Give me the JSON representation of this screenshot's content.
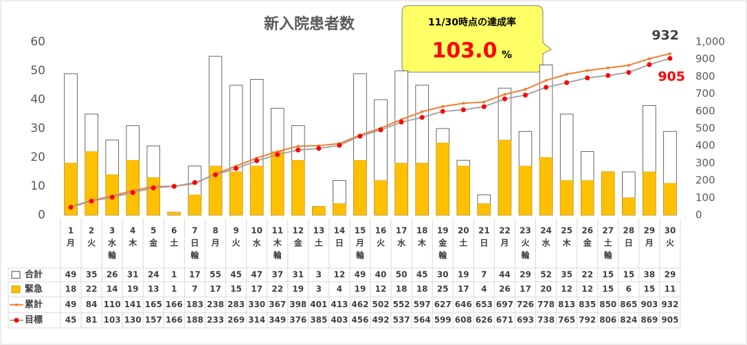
{
  "chart_data": {
    "type": "bar_line",
    "title": "新入院患者数",
    "days": [
      "1",
      "2",
      "3",
      "4",
      "5",
      "6",
      "7",
      "8",
      "9",
      "10",
      "11",
      "12",
      "13",
      "14",
      "15",
      "16",
      "17",
      "18",
      "19",
      "20",
      "21",
      "22",
      "23",
      "24",
      "25",
      "26",
      "27",
      "28",
      "29",
      "30"
    ],
    "weekdays": [
      "月",
      "火",
      "水",
      "木",
      "金",
      "土",
      "日",
      "月",
      "火",
      "水",
      "木",
      "金",
      "土",
      "日",
      "月",
      "火",
      "水",
      "木",
      "金",
      "土",
      "日",
      "月",
      "火",
      "水",
      "木",
      "金",
      "土",
      "日",
      "月",
      "火"
    ],
    "notes": [
      null,
      null,
      "輪",
      null,
      null,
      null,
      "輪",
      null,
      null,
      null,
      "輪",
      null,
      null,
      null,
      "輪",
      null,
      null,
      null,
      "輪",
      null,
      null,
      null,
      "輪",
      null,
      null,
      null,
      "輪",
      null,
      null,
      null
    ],
    "series": [
      {
        "name": "合計",
        "kind": "bar",
        "color": "#ffffff",
        "values": [
          49,
          35,
          26,
          31,
          24,
          1,
          17,
          55,
          45,
          47,
          37,
          31,
          3,
          12,
          49,
          40,
          50,
          45,
          30,
          19,
          7,
          44,
          29,
          52,
          35,
          22,
          15,
          15,
          38,
          29
        ]
      },
      {
        "name": "緊急",
        "kind": "bar",
        "color": "#ffc000",
        "values": [
          18,
          22,
          14,
          19,
          13,
          1,
          7,
          17,
          15,
          17,
          22,
          19,
          3,
          4,
          19,
          12,
          18,
          18,
          25,
          17,
          4,
          26,
          17,
          20,
          12,
          12,
          15,
          6,
          15,
          11
        ]
      },
      {
        "name": "累計",
        "kind": "line",
        "axis": "y2",
        "color": "#ed7d31",
        "values": [
          49,
          84,
          110,
          141,
          165,
          166,
          183,
          238,
          283,
          330,
          367,
          398,
          401,
          413,
          462,
          502,
          552,
          597,
          627,
          646,
          653,
          697,
          726,
          778,
          813,
          835,
          850,
          865,
          903,
          932
        ]
      },
      {
        "name": "目標",
        "kind": "line",
        "axis": "y2",
        "color": "#a5a5a5",
        "marker_color": "#ff0000",
        "values": [
          45,
          81,
          103,
          130,
          157,
          166,
          188,
          233,
          269,
          314,
          349,
          376,
          385,
          403,
          456,
          492,
          537,
          564,
          599,
          608,
          626,
          671,
          693,
          738,
          765,
          792,
          806,
          824,
          869,
          905
        ]
      }
    ],
    "ylim": [
      0,
      60
    ],
    "yticks": [
      0,
      10,
      20,
      30,
      40,
      50,
      60
    ],
    "y2lim": [
      0,
      1000
    ],
    "y2ticks": [
      0,
      100,
      200,
      300,
      400,
      500,
      600,
      700,
      800,
      900,
      {
        "value": 1000,
        "label": "1,000"
      }
    ],
    "grid": false,
    "callout": {
      "title": "11/30時点の達成率",
      "value": {
        "value": 103.0,
        "label": "103.0"
      },
      "unit": "%"
    }
  }
}
